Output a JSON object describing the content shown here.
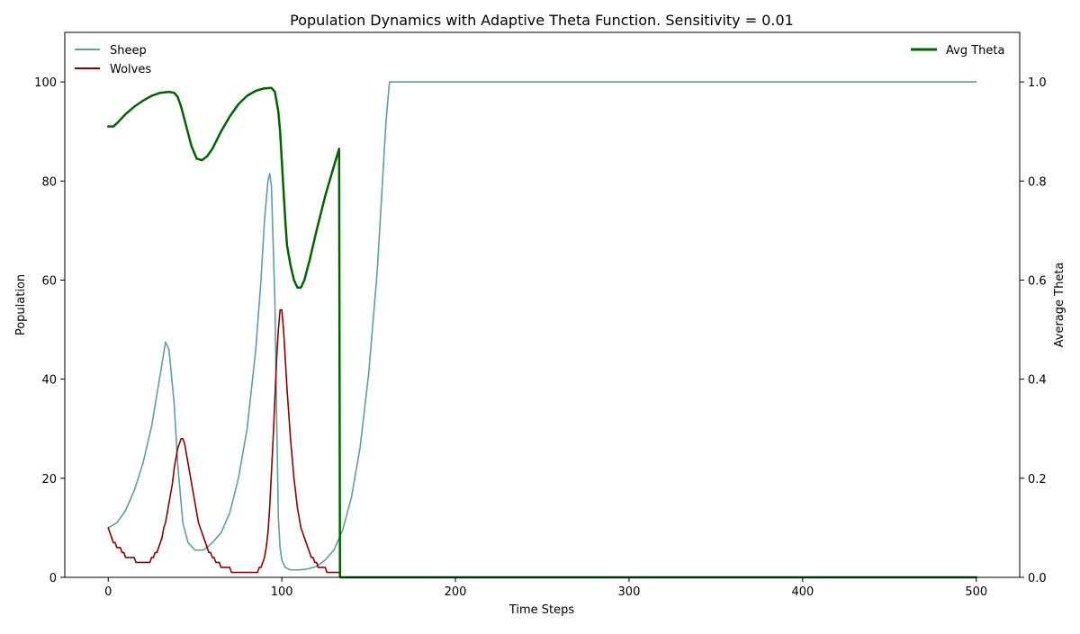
{
  "chart_data": {
    "type": "line",
    "title": "Population Dynamics with Adaptive Theta Function. Sensitivity = 0.01",
    "xlabel": "Time Steps",
    "ylabel": "Population",
    "ylabel_right": "Average Theta",
    "xlim": [
      -25,
      525
    ],
    "ylim": [
      0,
      110
    ],
    "ylim_right": [
      0,
      1.1
    ],
    "x_ticks": [
      0,
      100,
      200,
      300,
      400,
      500
    ],
    "y_ticks": [
      0,
      20,
      40,
      60,
      80,
      100
    ],
    "y_ticks_right": [
      "0.0",
      "0.2",
      "0.4",
      "0.6",
      "0.8",
      "1.0"
    ],
    "grid": false,
    "legend_left": "top-left",
    "legend_right": "top-right",
    "series": [
      {
        "name": "Sheep",
        "axis": "left",
        "color": "#5f9ea0",
        "points": [
          [
            0,
            10
          ],
          [
            5,
            11
          ],
          [
            10,
            13.5
          ],
          [
            15,
            17.5
          ],
          [
            20,
            23
          ],
          [
            25,
            30.5
          ],
          [
            30,
            41
          ],
          [
            33,
            47.5
          ],
          [
            35,
            46
          ],
          [
            38,
            35
          ],
          [
            40,
            23
          ],
          [
            43,
            11
          ],
          [
            46,
            7
          ],
          [
            50,
            5.5
          ],
          [
            55,
            5.5
          ],
          [
            60,
            7
          ],
          [
            65,
            9
          ],
          [
            70,
            13
          ],
          [
            75,
            20
          ],
          [
            80,
            30
          ],
          [
            85,
            46
          ],
          [
            88,
            60
          ],
          [
            90,
            72
          ],
          [
            92,
            80
          ],
          [
            93,
            81.5
          ],
          [
            94,
            79
          ],
          [
            96,
            56
          ],
          [
            97,
            33
          ],
          [
            98,
            12
          ],
          [
            99,
            6
          ],
          [
            100,
            3.5
          ],
          [
            102,
            2
          ],
          [
            105,
            1.5
          ],
          [
            110,
            1.5
          ],
          [
            115,
            1.7
          ],
          [
            120,
            2.2
          ],
          [
            125,
            3.5
          ],
          [
            130,
            5.5
          ],
          [
            135,
            9.5
          ],
          [
            140,
            16
          ],
          [
            145,
            26
          ],
          [
            150,
            41
          ],
          [
            155,
            62
          ],
          [
            158,
            80
          ],
          [
            160,
            92
          ],
          [
            162,
            100
          ],
          [
            200,
            100
          ],
          [
            300,
            100
          ],
          [
            400,
            100
          ],
          [
            500,
            100
          ]
        ]
      },
      {
        "name": "Wolves",
        "axis": "left",
        "color": "#8b0000",
        "points": [
          [
            0,
            10
          ],
          [
            1,
            9
          ],
          [
            2,
            8
          ],
          [
            3,
            7
          ],
          [
            4,
            7
          ],
          [
            5,
            6
          ],
          [
            6,
            6
          ],
          [
            7,
            6
          ],
          [
            8,
            5
          ],
          [
            9,
            5
          ],
          [
            10,
            4
          ],
          [
            15,
            4
          ],
          [
            16,
            3
          ],
          [
            24,
            3
          ],
          [
            25,
            4
          ],
          [
            26,
            4
          ],
          [
            27,
            5
          ],
          [
            28,
            5
          ],
          [
            29,
            6
          ],
          [
            30,
            7
          ],
          [
            31,
            8
          ],
          [
            32,
            10
          ],
          [
            33,
            11
          ],
          [
            34,
            13
          ],
          [
            35,
            15
          ],
          [
            36,
            17
          ],
          [
            37,
            19
          ],
          [
            38,
            22
          ],
          [
            39,
            24
          ],
          [
            40,
            26
          ],
          [
            41,
            27
          ],
          [
            42,
            28
          ],
          [
            43,
            28
          ],
          [
            44,
            27
          ],
          [
            45,
            25
          ],
          [
            46,
            23
          ],
          [
            47,
            21
          ],
          [
            48,
            19
          ],
          [
            49,
            17
          ],
          [
            50,
            15
          ],
          [
            51,
            13
          ],
          [
            52,
            11
          ],
          [
            53,
            10
          ],
          [
            54,
            9
          ],
          [
            55,
            8
          ],
          [
            56,
            7
          ],
          [
            57,
            6
          ],
          [
            58,
            5
          ],
          [
            59,
            5
          ],
          [
            60,
            4
          ],
          [
            61,
            4
          ],
          [
            62,
            3
          ],
          [
            63,
            3
          ],
          [
            64,
            3
          ],
          [
            65,
            2
          ],
          [
            70,
            2
          ],
          [
            71,
            1
          ],
          [
            86,
            1
          ],
          [
            87,
            2
          ],
          [
            88,
            2
          ],
          [
            89,
            3
          ],
          [
            90,
            4
          ],
          [
            91,
            6
          ],
          [
            92,
            9
          ],
          [
            93,
            14
          ],
          [
            94,
            21
          ],
          [
            95,
            28
          ],
          [
            96,
            36
          ],
          [
            97,
            44
          ],
          [
            98,
            50
          ],
          [
            99,
            54
          ],
          [
            100,
            54
          ],
          [
            101,
            50
          ],
          [
            102,
            44
          ],
          [
            103,
            38
          ],
          [
            104,
            33
          ],
          [
            105,
            28
          ],
          [
            106,
            24
          ],
          [
            107,
            20
          ],
          [
            108,
            17
          ],
          [
            109,
            14
          ],
          [
            110,
            12
          ],
          [
            111,
            10
          ],
          [
            112,
            9
          ],
          [
            113,
            8
          ],
          [
            114,
            7
          ],
          [
            115,
            6
          ],
          [
            116,
            5
          ],
          [
            117,
            4
          ],
          [
            118,
            4
          ],
          [
            119,
            3
          ],
          [
            120,
            3
          ],
          [
            121,
            2
          ],
          [
            125,
            2
          ],
          [
            126,
            1
          ],
          [
            133,
            1
          ],
          [
            134,
            0
          ],
          [
            500,
            0
          ]
        ]
      },
      {
        "name": "Avg Theta",
        "axis": "right",
        "color": "#006400",
        "points": [
          [
            0,
            0.91
          ],
          [
            3,
            0.91
          ],
          [
            6,
            0.92
          ],
          [
            10,
            0.935
          ],
          [
            15,
            0.95
          ],
          [
            20,
            0.962
          ],
          [
            25,
            0.972
          ],
          [
            30,
            0.978
          ],
          [
            35,
            0.98
          ],
          [
            38,
            0.978
          ],
          [
            40,
            0.97
          ],
          [
            42,
            0.95
          ],
          [
            45,
            0.91
          ],
          [
            48,
            0.87
          ],
          [
            51,
            0.845
          ],
          [
            54,
            0.842
          ],
          [
            57,
            0.85
          ],
          [
            60,
            0.865
          ],
          [
            65,
            0.9
          ],
          [
            70,
            0.93
          ],
          [
            75,
            0.955
          ],
          [
            80,
            0.972
          ],
          [
            85,
            0.982
          ],
          [
            90,
            0.987
          ],
          [
            94,
            0.988
          ],
          [
            96,
            0.98
          ],
          [
            98,
            0.94
          ],
          [
            99,
            0.9
          ],
          [
            100,
            0.84
          ],
          [
            101,
            0.78
          ],
          [
            102,
            0.72
          ],
          [
            103,
            0.67
          ],
          [
            105,
            0.63
          ],
          [
            107,
            0.6
          ],
          [
            109,
            0.585
          ],
          [
            111,
            0.585
          ],
          [
            113,
            0.6
          ],
          [
            116,
            0.64
          ],
          [
            120,
            0.7
          ],
          [
            125,
            0.77
          ],
          [
            130,
            0.83
          ],
          [
            133,
            0.865
          ],
          [
            133.5,
            0.001
          ],
          [
            134,
            0
          ],
          [
            500,
            0
          ]
        ]
      }
    ]
  }
}
